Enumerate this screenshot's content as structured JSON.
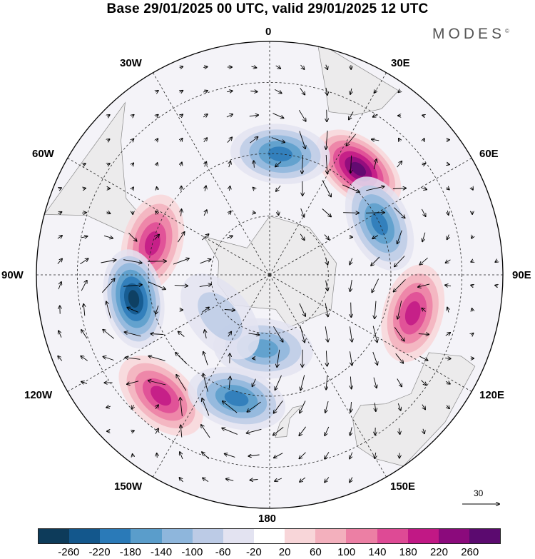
{
  "title": "Base 29/01/2025 00 UTC, valid 29/01/2025 12 UTC",
  "brand": "MODES",
  "brand_mark": "©",
  "map": {
    "projection": "south-polar-stereographic",
    "longitude_labels": {
      "top": "0",
      "bottom": "180",
      "left": "90W",
      "right": "90E",
      "upper_left_1": "30W",
      "upper_left_2": "60W",
      "upper_right_1": "30E",
      "upper_right_2": "60E",
      "lower_left_1": "120W",
      "lower_left_2": "150W",
      "lower_right_1": "120E",
      "lower_right_2": "150E"
    },
    "reference_vector": "30",
    "anomaly_centers": [
      {
        "lon": 40,
        "lat": -45,
        "value": 260,
        "sign": "positive"
      },
      {
        "lon": -75,
        "lat": -50,
        "value": 180,
        "sign": "positive"
      },
      {
        "lon": 105,
        "lat": -42,
        "value": 180,
        "sign": "positive"
      },
      {
        "lon": -138,
        "lat": -38,
        "value": 180,
        "sign": "positive"
      },
      {
        "lon": 65,
        "lat": -50,
        "value": -180,
        "sign": "negative"
      },
      {
        "lon": -100,
        "lat": -45,
        "value": -260,
        "sign": "negative"
      },
      {
        "lon": 5,
        "lat": -50,
        "value": -180,
        "sign": "negative"
      },
      {
        "lon": -165,
        "lat": -48,
        "value": -180,
        "sign": "negative"
      },
      {
        "lon": -175,
        "lat": -65,
        "value": -140,
        "sign": "negative"
      },
      {
        "lon": -130,
        "lat": -68,
        "value": -60,
        "sign": "negative"
      }
    ]
  },
  "colorbar": {
    "colors": [
      "#0d3b5a",
      "#13578c",
      "#2a7ab8",
      "#5a9dcb",
      "#8eb6dc",
      "#bccbe6",
      "#e3e3f1",
      "#ffffff",
      "#f8d6d9",
      "#f3b0bd",
      "#ec7fa4",
      "#de4a95",
      "#c11885",
      "#8b0a7c",
      "#5b0a6f"
    ],
    "ticks": [
      "-260",
      "-220",
      "-180",
      "-140",
      "-100",
      "-60",
      "-20",
      "20",
      "60",
      "100",
      "140",
      "180",
      "220",
      "260"
    ]
  }
}
